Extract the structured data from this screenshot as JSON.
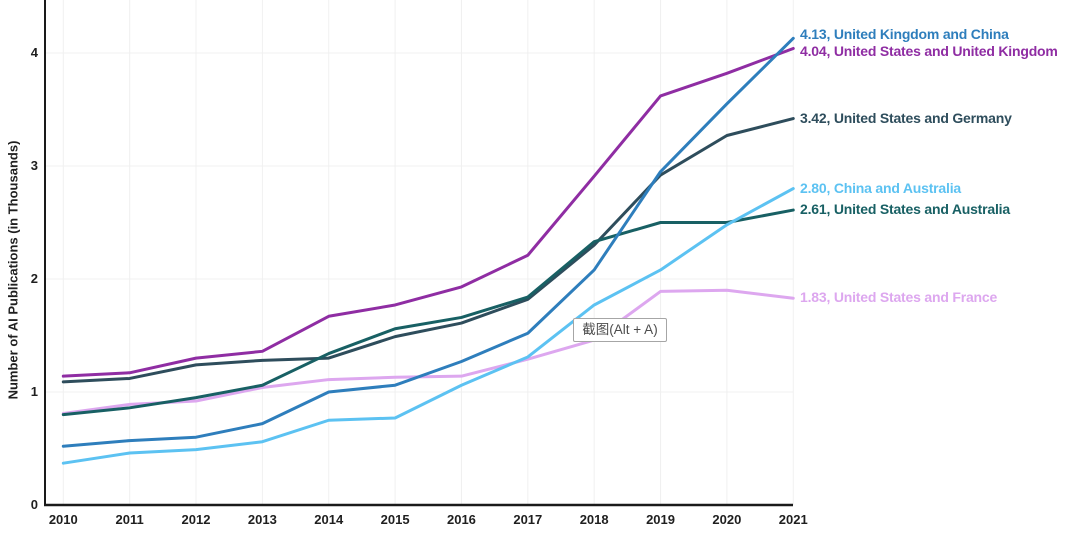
{
  "chart_data": {
    "type": "line",
    "title": "",
    "xlabel": "",
    "ylabel": "Number of AI Publications (in Thousands)",
    "x": [
      2010,
      2011,
      2012,
      2013,
      2014,
      2015,
      2016,
      2017,
      2018,
      2019,
      2020,
      2021
    ],
    "y_ticks": [
      0,
      1,
      2,
      3,
      4
    ],
    "ylim": [
      0,
      4.5
    ],
    "grid": true,
    "grid_color": "#f0f0f0",
    "axis_color": "#1a1a1a",
    "legend_position": "end-of-line labels at right",
    "series": [
      {
        "name": "United Kingdom and China",
        "color": "#2e7ebc",
        "final_value": 4.13,
        "end_label": "4.13, United Kingdom and China",
        "values": [
          0.52,
          0.57,
          0.6,
          0.72,
          1.0,
          1.06,
          1.27,
          1.52,
          2.08,
          2.95,
          3.55,
          4.13
        ]
      },
      {
        "name": "United States and United Kingdom",
        "color": "#8f2da3",
        "final_value": 4.04,
        "end_label": "4.04, United States and United Kingdom",
        "values": [
          1.14,
          1.17,
          1.3,
          1.36,
          1.67,
          1.77,
          1.93,
          2.21,
          2.91,
          3.62,
          3.82,
          4.04
        ]
      },
      {
        "name": "United States and Germany",
        "color": "#2e4d5c",
        "final_value": 3.42,
        "end_label": "3.42, United States and Germany",
        "values": [
          1.09,
          1.12,
          1.24,
          1.28,
          1.3,
          1.49,
          1.61,
          1.82,
          2.3,
          2.92,
          3.27,
          3.42
        ]
      },
      {
        "name": "China and Australia",
        "color": "#5cc2f2",
        "final_value": 2.8,
        "end_label": "2.80, China and Australia",
        "values": [
          0.37,
          0.46,
          0.49,
          0.56,
          0.75,
          0.77,
          1.06,
          1.31,
          1.77,
          2.08,
          2.48,
          2.8
        ]
      },
      {
        "name": "United States and Australia",
        "color": "#186064",
        "final_value": 2.61,
        "end_label": "2.61, United States and Australia",
        "values": [
          0.8,
          0.86,
          0.95,
          1.06,
          1.34,
          1.56,
          1.66,
          1.84,
          2.33,
          2.5,
          2.5,
          2.61
        ]
      },
      {
        "name": "United States and France",
        "color": "#dda7ef",
        "final_value": 1.83,
        "end_label": "1.83, United States and France",
        "values": [
          0.81,
          0.89,
          0.92,
          1.04,
          1.11,
          1.13,
          1.14,
          1.29,
          1.46,
          1.89,
          1.9,
          1.83
        ]
      }
    ],
    "z_order": [
      5,
      2,
      1,
      4,
      3,
      0
    ]
  },
  "overlay": {
    "tooltip_text": "截图(Alt + A)"
  }
}
